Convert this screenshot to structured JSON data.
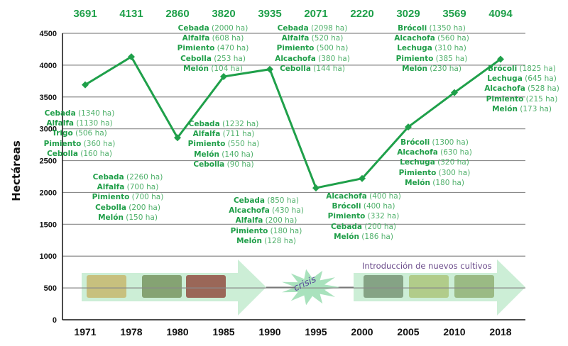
{
  "chart_data": {
    "type": "line",
    "ylabel": "Hectáreas",
    "ylim": [
      0,
      4500
    ],
    "yticks": [
      0,
      500,
      1000,
      1500,
      2000,
      2500,
      3000,
      3500,
      4000,
      4500
    ],
    "grid": true,
    "categories": [
      "1971",
      "1978",
      "1980",
      "1985",
      "1990",
      "1995",
      "2000",
      "2005",
      "2010",
      "2018"
    ],
    "values": [
      3691,
      4131,
      2860,
      3820,
      3935,
      2071,
      2220,
      3029,
      3569,
      4094
    ],
    "line_color": "#1fa04a",
    "annotations": [
      {
        "id": "1971",
        "items": [
          {
            "crop": "Cebada",
            "ha": "(1340 ha)"
          },
          {
            "crop": "Alfalfa",
            "ha": "(1130 ha)"
          },
          {
            "crop": "Trigo",
            "ha": "(506 ha)"
          },
          {
            "crop": "Pimiento",
            "ha": "(360 ha)"
          },
          {
            "crop": "Cebolla",
            "ha": "(160 ha)"
          }
        ]
      },
      {
        "id": "1978",
        "items": [
          {
            "crop": "Cebada",
            "ha": "(2260 ha)"
          },
          {
            "crop": "Alfalfa",
            "ha": "(700 ha)"
          },
          {
            "crop": "Pimiento",
            "ha": "(700 ha)"
          },
          {
            "crop": "Cebolla",
            "ha": "(200 ha)"
          },
          {
            "crop": "Melón",
            "ha": "(150 ha)"
          }
        ]
      },
      {
        "id": "1980",
        "items": [
          {
            "crop": "Cebada",
            "ha": "(1232 ha)"
          },
          {
            "crop": "Alfalfa",
            "ha": "(711 ha)"
          },
          {
            "crop": "Pimiento",
            "ha": "(550 ha)"
          },
          {
            "crop": "Melón",
            "ha": "(140 ha)"
          },
          {
            "crop": "Cebolla",
            "ha": "(90 ha)"
          }
        ]
      },
      {
        "id": "1985",
        "items": [
          {
            "crop": "Cebada",
            "ha": "(2000 ha)"
          },
          {
            "crop": "Alfalfa",
            "ha": "(608 ha)"
          },
          {
            "crop": "Pimiento",
            "ha": "(470 ha)"
          },
          {
            "crop": "Cebolla",
            "ha": "(253 ha)"
          },
          {
            "crop": "Melón",
            "ha": "(104 ha)"
          }
        ]
      },
      {
        "id": "1990a",
        "items": [
          {
            "crop": "Cebada",
            "ha": "(2098 ha)"
          },
          {
            "crop": "Alfalfa",
            "ha": "(520 ha)"
          },
          {
            "crop": "Pimiento",
            "ha": "(500 ha)"
          },
          {
            "crop": "Alcachofa",
            "ha": "(380 ha)"
          },
          {
            "crop": "Cebolla",
            "ha": "(144 ha)"
          }
        ]
      },
      {
        "id": "1990b",
        "items": [
          {
            "crop": "Cebada",
            "ha": "(850 ha)"
          },
          {
            "crop": "Alcachofa",
            "ha": "(430 ha)"
          },
          {
            "crop": "Alfalfa",
            "ha": "(200 ha)"
          },
          {
            "crop": "Pimiento",
            "ha": "(180 ha)"
          },
          {
            "crop": "Melón",
            "ha": "(128 ha)"
          }
        ]
      },
      {
        "id": "2000",
        "items": [
          {
            "crop": "Alcachofa",
            "ha": "(400 ha)"
          },
          {
            "crop": "Brócoli",
            "ha": "(400 ha)"
          },
          {
            "crop": "Pimiento",
            "ha": "(332 ha)"
          },
          {
            "crop": "Cebada",
            "ha": "(200 ha)"
          },
          {
            "crop": "Melón",
            "ha": "(186 ha)"
          }
        ]
      },
      {
        "id": "2005a",
        "items": [
          {
            "crop": "Brócoli",
            "ha": "(1350 ha)"
          },
          {
            "crop": "Alcachofa",
            "ha": "(560 ha)"
          },
          {
            "crop": "Lechuga",
            "ha": "(310 ha)"
          },
          {
            "crop": "Pimiento",
            "ha": "(385 ha)"
          },
          {
            "crop": "Melón",
            "ha": "(230 ha)"
          }
        ]
      },
      {
        "id": "2005b",
        "items": [
          {
            "crop": "Brócoli",
            "ha": "(1300 ha)"
          },
          {
            "crop": "Alcachofa",
            "ha": "(630 ha)"
          },
          {
            "crop": "Lechuga",
            "ha": "(320 ha)"
          },
          {
            "crop": "Pimiento",
            "ha": "(300 ha)"
          },
          {
            "crop": "Melón",
            "ha": "(180 ha)"
          }
        ]
      },
      {
        "id": "2018",
        "items": [
          {
            "crop": "Brócoli",
            "ha": "(1825 ha)"
          },
          {
            "crop": "Lechuga",
            "ha": "(645 ha)"
          },
          {
            "crop": "Alcachofa",
            "ha": "(528 ha)"
          },
          {
            "crop": "Pimiento",
            "ha": "(215 ha)"
          },
          {
            "crop": "Melón",
            "ha": "(173 ha)"
          }
        ]
      }
    ],
    "banner": {
      "crisis_label": "crisis",
      "new_crops_label": "Introducción de nuevos cultivos"
    }
  }
}
